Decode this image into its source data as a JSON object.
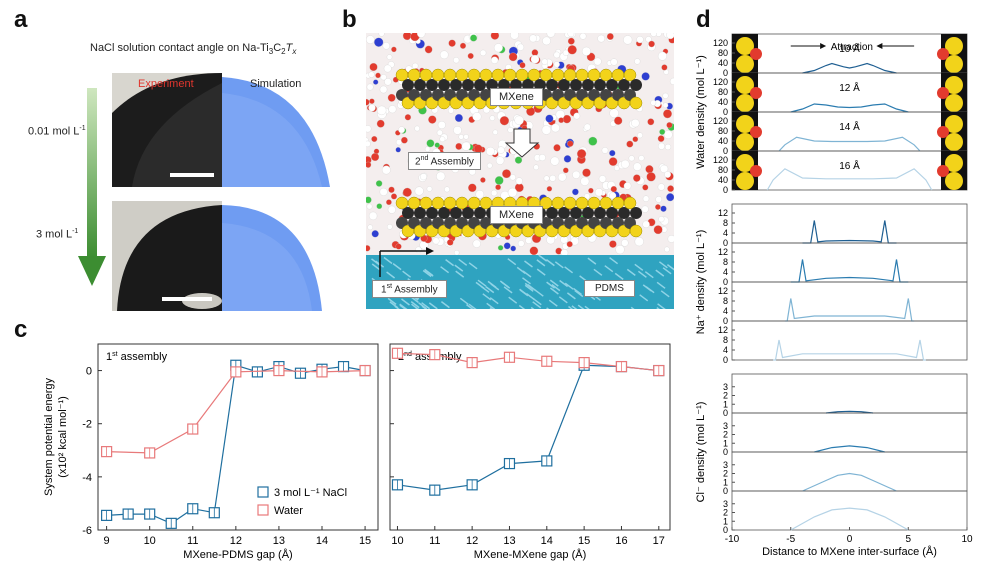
{
  "panels": {
    "a": "a",
    "b": "b",
    "c": "c",
    "d": "d"
  },
  "panel_a": {
    "title": "NaCl solution contact angle on Na-Ti",
    "title_sub3": "3",
    "title_mid": "C",
    "title_sub2": "2",
    "title_T": "T",
    "title_x": "x",
    "experiment_label": "Experiment",
    "simulation_label": "Simulation",
    "conc_top": "0.01 mol L",
    "conc_bottom": "3 mol L",
    "conc_sup": "-1",
    "colors": {
      "experiment": "#e0362e",
      "water_sim": "#5b8ff0",
      "arrow_top": "#c8e3b8",
      "arrow_bottom": "#3f8f35"
    }
  },
  "panel_b": {
    "mxene_label": "MXene",
    "assembly2_label": "2nd Assembly",
    "assembly2_num": "2",
    "assembly2_sup": "nd",
    "assembly2_text": " Assembly",
    "assembly1_num": "1",
    "assembly1_sup": "st",
    "assembly1_text": " Assembly",
    "pdms_label": "PDMS",
    "colors": {
      "pdms": "#2fa3c0",
      "yellow": "#f2d31a",
      "black": "#2a2a2a",
      "water_o": "#e23b2e"
    }
  },
  "panel_c": {
    "ylabel_line1": "System potential energy",
    "ylabel_line2": "(x10² kcal mol⁻¹)",
    "legend_nacl": "3 mol L⁻¹ NaCl",
    "legend_water": "Water",
    "left_title_num": "1",
    "left_title_sup": "st",
    "left_title_text": " assembly",
    "right_title_num": "2",
    "right_title_sup": "nd",
    "right_title_text": " assembly",
    "left_xlabel": "MXene-PDMS gap (Å)",
    "right_xlabel": "MXene-MXene gap (Å)",
    "colors": {
      "nacl": "#1f6f9f",
      "water": "#e8797a"
    }
  },
  "chart_data": [
    {
      "type": "line",
      "title": "1st assembly",
      "xlabel": "MXene-PDMS gap (Å)",
      "ylabel": "System potential energy (x10² kcal mol⁻¹)",
      "x": [
        9,
        10,
        11,
        12,
        13,
        14,
        15
      ],
      "xticks": [
        "9",
        "10",
        "11",
        "12",
        "13",
        "14",
        "15"
      ],
      "xlim": [
        8.8,
        15.3
      ],
      "ylim": [
        -6,
        1
      ],
      "yticks": [
        "-6",
        "-4",
        "-2",
        "0"
      ],
      "series": [
        {
          "name": "3 mol L⁻¹ NaCl",
          "x": [
            9,
            9.5,
            10,
            10.5,
            11,
            11.5,
            12,
            12.5,
            13,
            13.5,
            14,
            14.5,
            15
          ],
          "values": [
            -5.45,
            -5.4,
            -5.4,
            -5.75,
            -5.2,
            -5.35,
            0.2,
            -0.05,
            0.15,
            -0.1,
            0.05,
            0.15,
            0.0
          ]
        },
        {
          "name": "Water",
          "x": [
            9,
            10,
            11,
            12,
            13,
            14,
            15
          ],
          "values": [
            -3.05,
            -3.1,
            -2.2,
            -0.05,
            0.0,
            -0.05,
            0.0
          ]
        }
      ]
    },
    {
      "type": "line",
      "title": "2nd assembly",
      "xlabel": "MXene-MXene gap (Å)",
      "ylabel": "",
      "x": [
        10,
        11,
        12,
        13,
        14,
        15,
        16,
        17
      ],
      "xticks": [
        "10",
        "11",
        "12",
        "13",
        "14",
        "15",
        "16",
        "17"
      ],
      "xlim": [
        9.8,
        17.3
      ],
      "ylim": [
        -6,
        1
      ],
      "series": [
        {
          "name": "3 mol L⁻¹ NaCl",
          "x": [
            10,
            11,
            12,
            13,
            14,
            15,
            16,
            17
          ],
          "values": [
            -4.3,
            -4.5,
            -4.3,
            -3.5,
            -3.4,
            0.2,
            0.15,
            0.0
          ]
        },
        {
          "name": "Water",
          "x": [
            10,
            11,
            12,
            13,
            14,
            15,
            16,
            17
          ],
          "values": [
            0.65,
            0.6,
            0.3,
            0.5,
            0.35,
            0.3,
            0.15,
            0.0
          ]
        }
      ]
    },
    {
      "type": "line",
      "title": "",
      "xlabel": "Distance to MXene inter-surface (Å)",
      "ylabel": "Water density (mol L⁻¹)",
      "xlim": [
        -10,
        10
      ],
      "xticks": [
        "-10",
        "-5",
        "0",
        "5",
        "10"
      ],
      "ylim": [
        0,
        140
      ],
      "yticks": [
        "0",
        "40",
        "80",
        "120"
      ],
      "subplots": [
        {
          "label": "10 Å",
          "color": "#1f5f92",
          "x": [
            -4,
            -3,
            -2,
            -1.5,
            -0.5,
            0,
            0.5,
            1.5,
            2,
            3,
            4
          ],
          "values": [
            0,
            10,
            30,
            38,
            25,
            20,
            25,
            38,
            30,
            10,
            0
          ]
        },
        {
          "label": "12 Å",
          "color": "#2b7cb0",
          "x": [
            -5,
            -4,
            -3,
            -2,
            -1,
            0,
            1,
            2,
            3,
            4,
            5
          ],
          "values": [
            0,
            12,
            32,
            28,
            20,
            18,
            20,
            28,
            32,
            12,
            0
          ]
        },
        {
          "label": "14 Å",
          "color": "#7fb4d4",
          "x": [
            -6,
            -5.5,
            -4.5,
            -3,
            -1.5,
            0,
            1.5,
            3,
            4.5,
            5.5,
            6
          ],
          "values": [
            0,
            25,
            55,
            40,
            38,
            38,
            38,
            40,
            55,
            25,
            0
          ]
        },
        {
          "label": "16 Å",
          "color": "#b5d3e6",
          "x": [
            -7,
            -6.5,
            -5.5,
            -4,
            -2,
            0,
            2,
            4,
            5.5,
            6.5,
            7
          ],
          "values": [
            0,
            40,
            85,
            48,
            45,
            45,
            45,
            48,
            85,
            40,
            0
          ]
        }
      ],
      "annotation": "Attraction"
    },
    {
      "type": "line",
      "title": "",
      "ylabel": "Na⁺ density (mol L⁻¹)",
      "xlim": [
        -10,
        10
      ],
      "ylim": [
        0,
        14
      ],
      "yticks": [
        "0",
        "4",
        "8",
        "12"
      ],
      "subplots": [
        {
          "color": "#1f5f92",
          "x": [
            -4,
            -3.3,
            -3,
            -2.7,
            -2,
            0,
            2,
            2.7,
            3,
            3.3,
            4
          ],
          "values": [
            0,
            0,
            9,
            0.5,
            0.8,
            1,
            0.8,
            0.5,
            9,
            0,
            0
          ]
        },
        {
          "color": "#2b7cb0",
          "x": [
            -5,
            -4.3,
            -4,
            -3.7,
            -2,
            0,
            2,
            3.7,
            4,
            4.3,
            5
          ],
          "values": [
            0,
            0,
            9,
            0.5,
            1.5,
            1.8,
            1.5,
            0.5,
            9,
            0,
            0
          ]
        },
        {
          "color": "#7fb4d4",
          "x": [
            -5.5,
            -5.3,
            -5,
            -4.7,
            -3,
            0,
            3,
            4.7,
            5,
            5.3,
            5.5
          ],
          "values": [
            0,
            0,
            9,
            1,
            2,
            2,
            2,
            1,
            9,
            0,
            0
          ]
        },
        {
          "color": "#b5d3e6",
          "x": [
            -6.5,
            -6.3,
            -6,
            -5.7,
            -4,
            0,
            4,
            5.7,
            6,
            6.3,
            6.5
          ],
          "values": [
            0,
            0,
            8,
            1,
            2.5,
            2.5,
            2.5,
            1,
            8,
            0,
            0
          ]
        }
      ]
    },
    {
      "type": "line",
      "title": "",
      "ylabel": "Cl⁻ density (mol L⁻¹)",
      "xlim": [
        -10,
        10
      ],
      "ylim": [
        0,
        4
      ],
      "yticks": [
        "0",
        "1",
        "2",
        "3"
      ],
      "subplots": [
        {
          "color": "#1f5f92",
          "x": [
            -2,
            -1,
            0,
            1,
            2
          ],
          "values": [
            0,
            0.15,
            0.2,
            0.15,
            0
          ]
        },
        {
          "color": "#2b7cb0",
          "x": [
            -3,
            -1.5,
            0,
            1.5,
            3
          ],
          "values": [
            0,
            0.5,
            0.7,
            0.5,
            0
          ]
        },
        {
          "color": "#7fb4d4",
          "x": [
            -4,
            -2,
            -1,
            0,
            1,
            2,
            4
          ],
          "values": [
            0,
            1.2,
            1.8,
            2.0,
            1.8,
            1.2,
            0
          ]
        },
        {
          "color": "#b5d3e6",
          "x": [
            -5,
            -3,
            -1.5,
            0,
            1.5,
            3,
            5
          ],
          "values": [
            0,
            1.5,
            2.3,
            2.5,
            2.3,
            1.5,
            0
          ]
        }
      ]
    }
  ]
}
